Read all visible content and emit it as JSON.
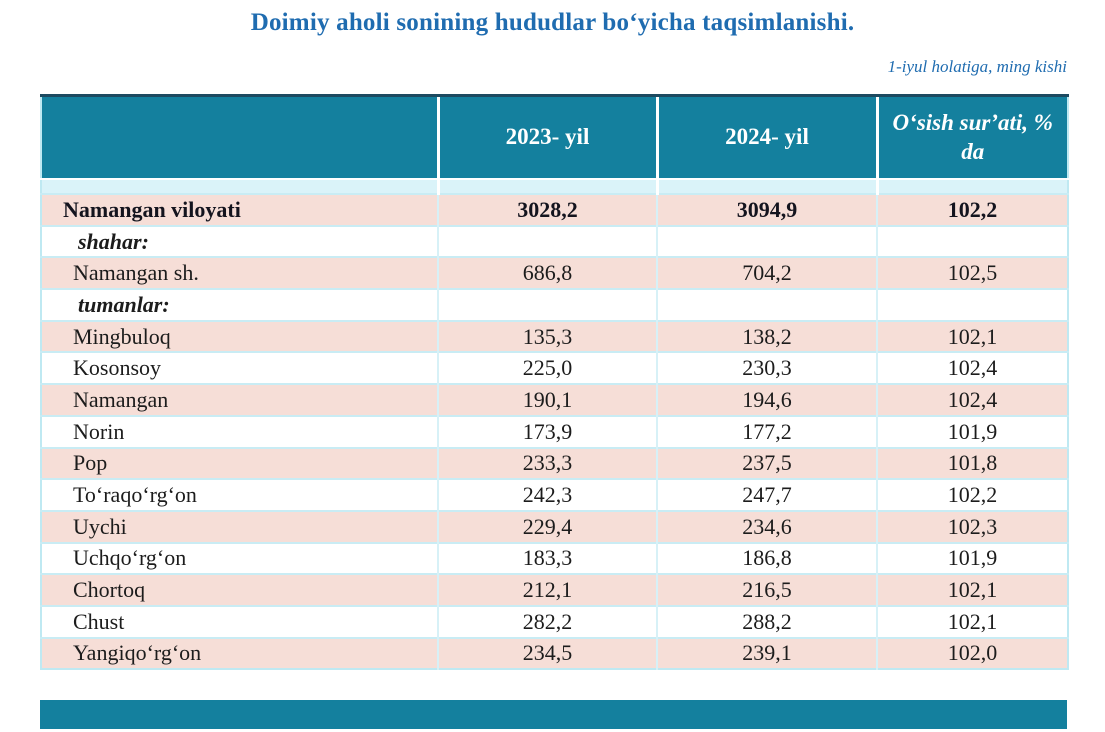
{
  "page": {
    "title": "Doimiy aholi sonining hududlar boʻyicha taqsimlanishi.",
    "subtitle": "1-iyul holatiga, ming kishi"
  },
  "colors": {
    "header_teal": "#14809E",
    "row_pink": "#F6DED7",
    "spacer_blue": "#DAF3F9",
    "title_blue": "#1F6CB0",
    "grid_cyan": "#C9ECF4"
  },
  "table": {
    "columns": [
      "",
      "2023- yil",
      "2024- yil",
      "Oʻsish surʼati, % da"
    ],
    "rows": [
      {
        "name": "Namangan viloyati",
        "y2023": "3028,2",
        "y2024": "3094,9",
        "growth": "102,2"
      },
      {
        "name": "shahar:",
        "y2023": "",
        "y2024": "",
        "growth": ""
      },
      {
        "name": "Namangan sh.",
        "y2023": "686,8",
        "y2024": "704,2",
        "growth": "102,5"
      },
      {
        "name": "tumanlar:",
        "y2023": "",
        "y2024": "",
        "growth": ""
      },
      {
        "name": "Mingbuloq",
        "y2023": "135,3",
        "y2024": "138,2",
        "growth": "102,1"
      },
      {
        "name": "Kosonsoy",
        "y2023": "225,0",
        "y2024": "230,3",
        "growth": "102,4"
      },
      {
        "name": "Namangan",
        "y2023": "190,1",
        "y2024": "194,6",
        "growth": "102,4"
      },
      {
        "name": "Norin",
        "y2023": "173,9",
        "y2024": "177,2",
        "growth": "101,9"
      },
      {
        "name": "Pop",
        "y2023": "233,3",
        "y2024": "237,5",
        "growth": "101,8"
      },
      {
        "name": "Toʻraqoʻrgʻon",
        "y2023": "242,3",
        "y2024": "247,7",
        "growth": "102,2"
      },
      {
        "name": "Uychi",
        "y2023": "229,4",
        "y2024": "234,6",
        "growth": "102,3"
      },
      {
        "name": "Uchqoʻrgʻon",
        "y2023": "183,3",
        "y2024": "186,8",
        "growth": "101,9"
      },
      {
        "name": "Chortoq",
        "y2023": "212,1",
        "y2024": "216,5",
        "growth": "102,1"
      },
      {
        "name": "Chust",
        "y2023": "282,2",
        "y2024": "288,2",
        "growth": "102,1"
      },
      {
        "name": "Yangiqoʻrgʻon",
        "y2023": "234,5",
        "y2024": "239,1",
        "growth": "102,0"
      }
    ]
  }
}
